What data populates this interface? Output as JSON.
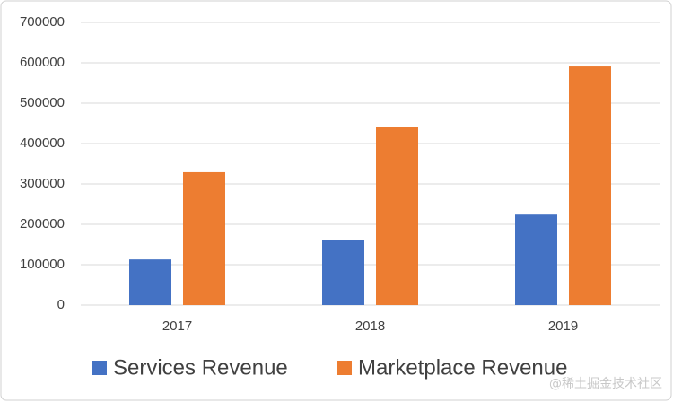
{
  "chart_data": {
    "type": "bar",
    "categories": [
      "2017",
      "2018",
      "2019"
    ],
    "series": [
      {
        "name": "Services Revenue",
        "color": "#4472c4",
        "values": [
          113000,
          160000,
          224000
        ]
      },
      {
        "name": "Marketplace Revenue",
        "color": "#ed7d31",
        "values": [
          329000,
          442000,
          591000
        ]
      }
    ],
    "ylim": [
      0,
      700000
    ],
    "yticks": [
      0,
      100000,
      200000,
      300000,
      400000,
      500000,
      600000,
      700000
    ],
    "grid": true,
    "legend": "bottom"
  },
  "watermark": "@稀土掘金技术社区"
}
